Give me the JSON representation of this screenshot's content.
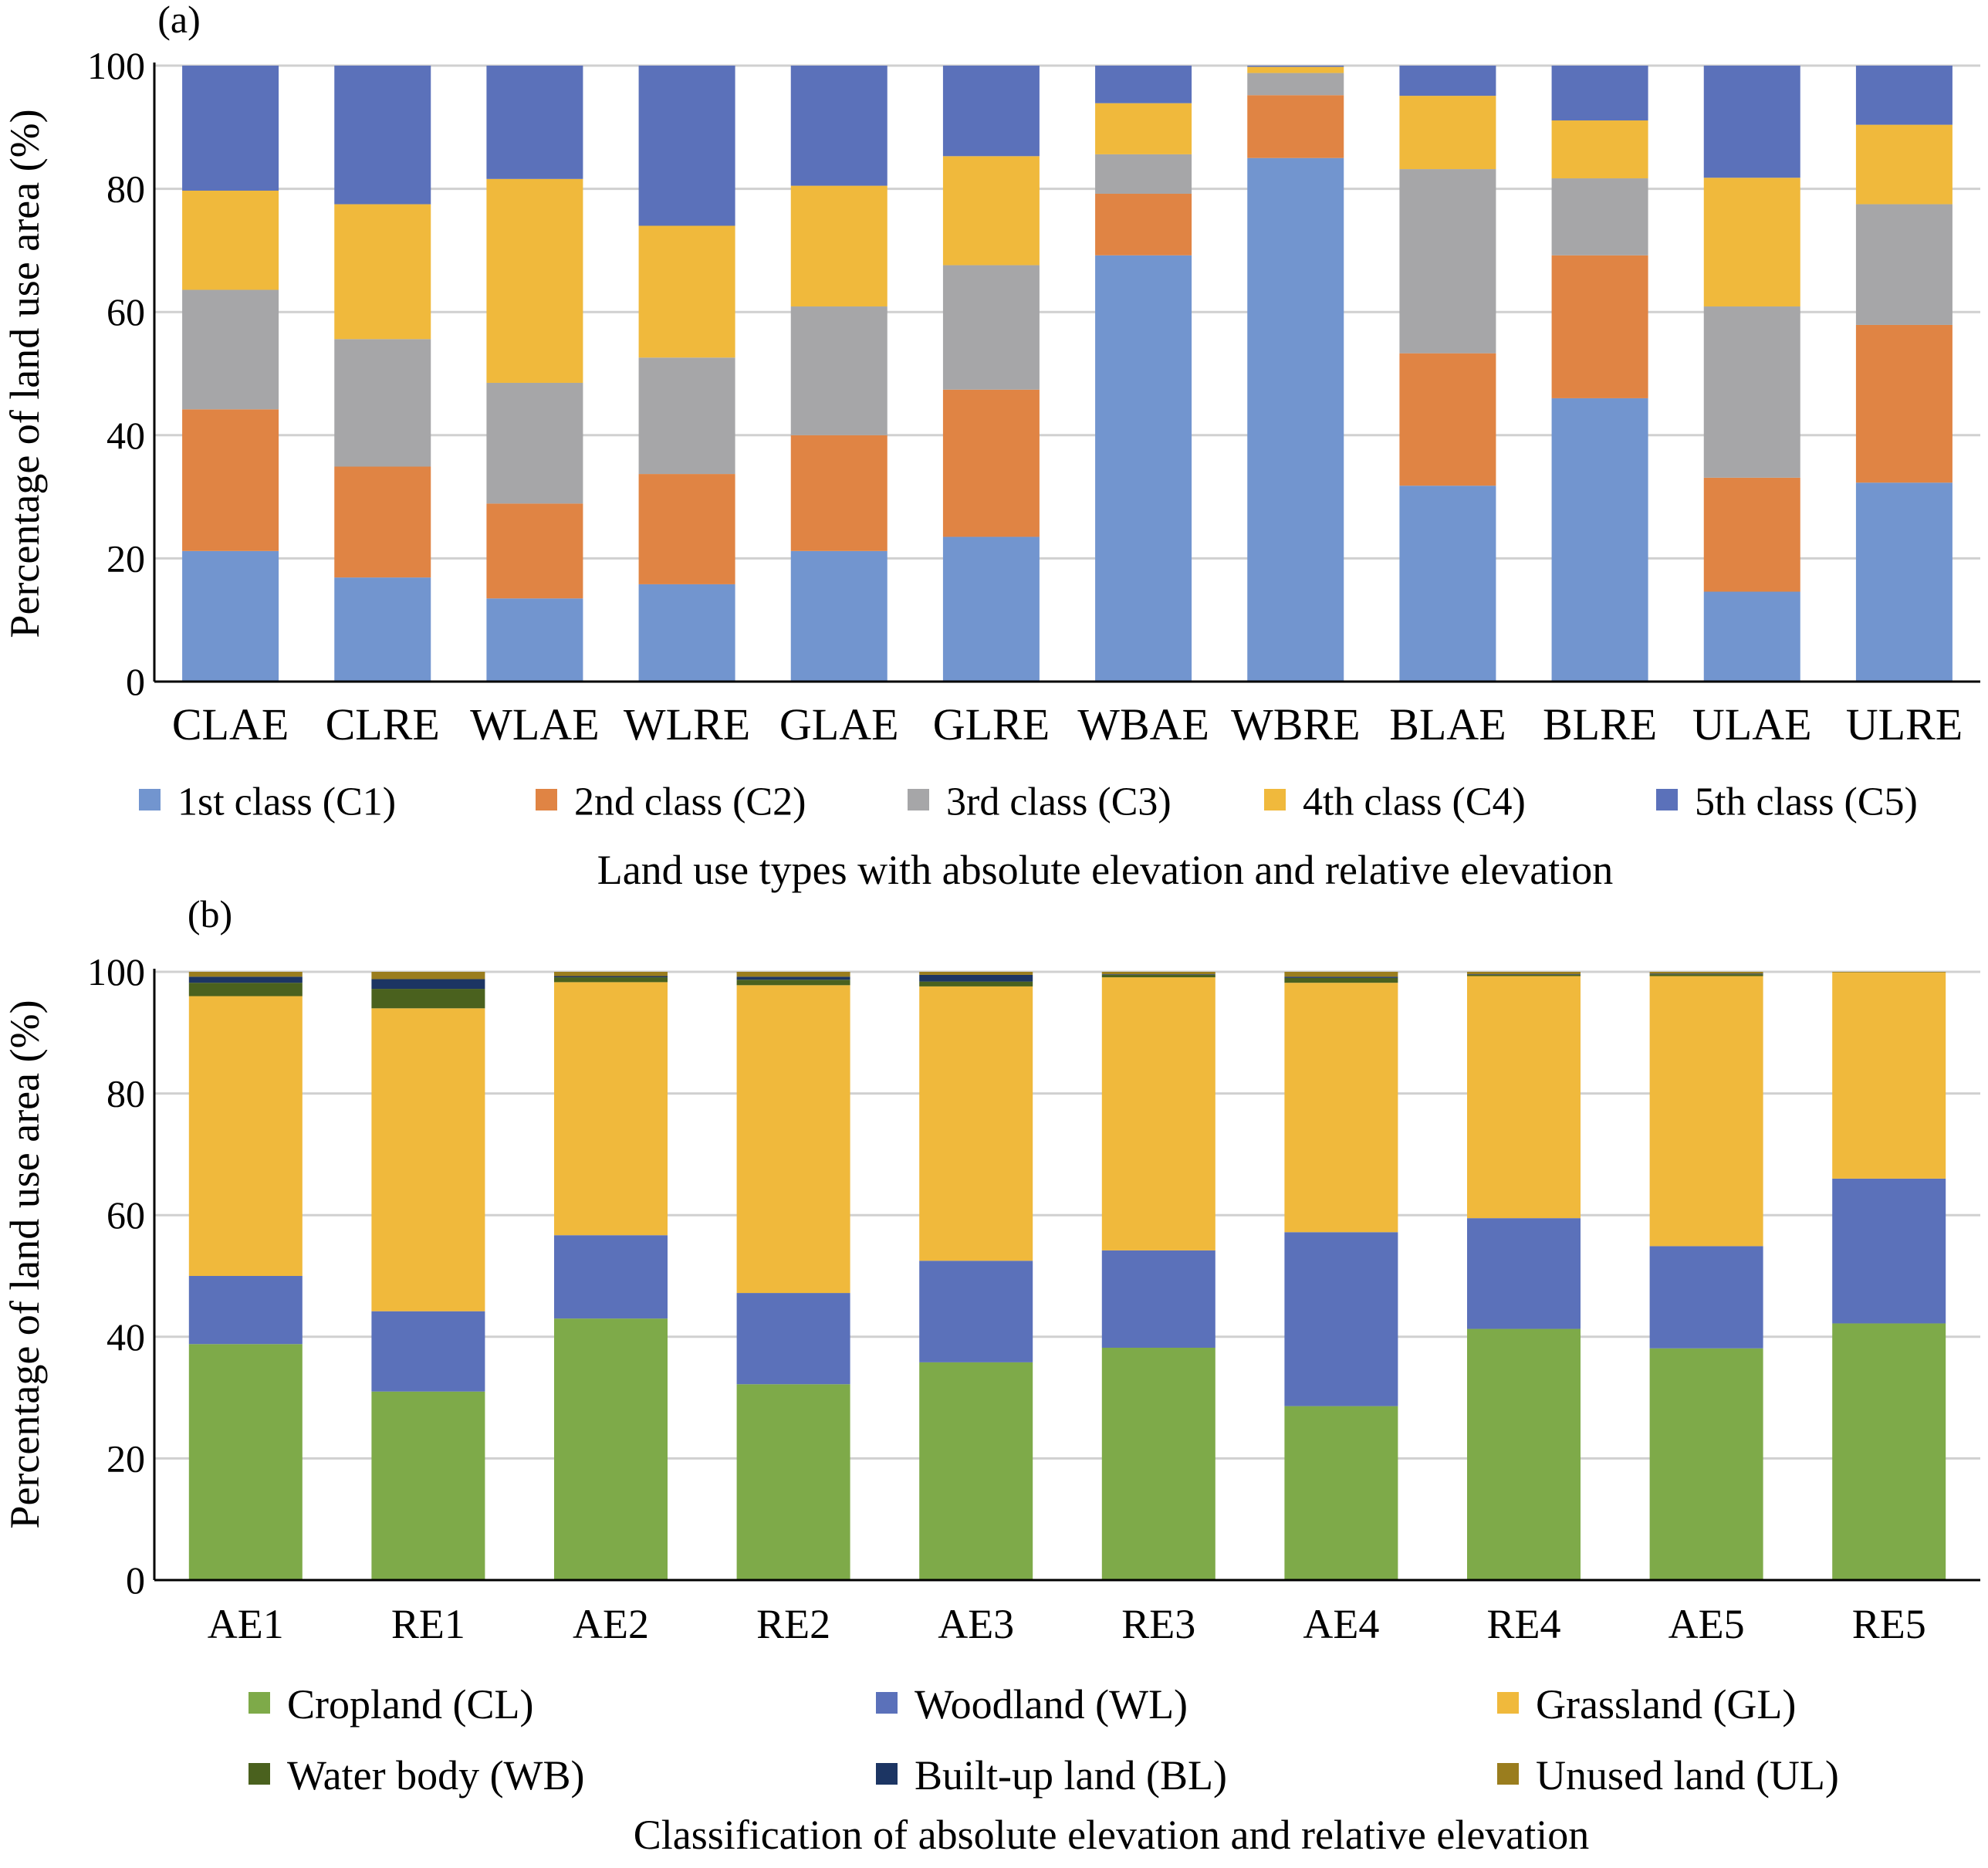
{
  "chart_data": [
    {
      "type": "bar",
      "stacked": true,
      "panel_label": "(a)",
      "xlabel": "Land use types with absolute elevation and relative elevation",
      "ylabel": "Percentage of land use area (%)",
      "ylim": [
        0,
        100
      ],
      "yticks": [
        "0",
        "20",
        "40",
        "60",
        "80",
        "100"
      ],
      "grid": "horizontal",
      "legend_position": "bottom",
      "categories": [
        "CLAE",
        "CLRE",
        "WLAE",
        "WLRE",
        "GLAE",
        "GLRE",
        "WBAE",
        "WBRE",
        "BLAE",
        "BLRE",
        "ULAE",
        "ULRE"
      ],
      "series": [
        {
          "name": "1st class (C1)",
          "color": "#7295cf",
          "values": [
            21.2,
            16.9,
            13.5,
            15.8,
            21.2,
            23.5,
            69.2,
            85.0,
            31.8,
            46.0,
            14.6,
            32.3
          ]
        },
        {
          "name": "2nd class (C2)",
          "color": "#e08444",
          "values": [
            23.0,
            18.0,
            15.4,
            17.9,
            18.8,
            23.9,
            10.0,
            10.2,
            21.5,
            23.2,
            18.5,
            25.6
          ]
        },
        {
          "name": "3rd class (C3)",
          "color": "#a6a6a8",
          "values": [
            19.4,
            20.7,
            19.6,
            18.9,
            20.9,
            20.2,
            6.4,
            3.6,
            29.9,
            12.5,
            27.8,
            19.6
          ]
        },
        {
          "name": "4th class (C4)",
          "color": "#f0b93c",
          "values": [
            16.1,
            21.9,
            33.1,
            21.4,
            19.6,
            17.7,
            8.3,
            1.0,
            11.9,
            9.4,
            20.9,
            12.9
          ]
        },
        {
          "name": "5th class (C5)",
          "color": "#5b71ba",
          "values": [
            20.3,
            22.5,
            18.4,
            26.0,
            19.5,
            14.7,
            6.1,
            0.2,
            4.9,
            8.9,
            18.2,
            9.6
          ]
        }
      ]
    },
    {
      "type": "bar",
      "stacked": true,
      "panel_label": "(b)",
      "xlabel": "Classification of absolute elevation and relative elevation",
      "ylabel": "Percentage of land use area (%)",
      "ylim": [
        0,
        100
      ],
      "yticks": [
        "0",
        "20",
        "40",
        "60",
        "80",
        "100"
      ],
      "grid": "horizontal",
      "legend_position": "bottom",
      "categories": [
        "AE1",
        "RE1",
        "AE2",
        "RE2",
        "AE3",
        "RE3",
        "AE4",
        "RE4",
        "AE5",
        "RE5"
      ],
      "series": [
        {
          "name": "Cropland (CL)",
          "color": "#7eaa49",
          "values": [
            38.8,
            31.0,
            43.0,
            32.2,
            35.8,
            38.2,
            28.6,
            41.3,
            38.1,
            42.2
          ]
        },
        {
          "name": "Woodland (WL)",
          "color": "#5b71ba",
          "values": [
            11.2,
            13.2,
            13.7,
            15.0,
            16.7,
            16.0,
            28.6,
            18.2,
            16.8,
            23.8
          ]
        },
        {
          "name": "Grassland (GL)",
          "color": "#f0b93c",
          "values": [
            46.0,
            49.8,
            41.6,
            50.6,
            45.1,
            44.9,
            41.0,
            39.8,
            44.4,
            33.9
          ]
        },
        {
          "name": "Water body (WB)",
          "color": "#4a611e",
          "values": [
            2.2,
            3.2,
            0.8,
            0.9,
            0.8,
            0.4,
            0.8,
            0.2,
            0.3,
            0.0
          ]
        },
        {
          "name": "Built-up land (BL)",
          "color": "#1c3563",
          "values": [
            1.0,
            1.6,
            0.2,
            0.5,
            1.1,
            0.1,
            0.2,
            0.1,
            0.1,
            0.0
          ]
        },
        {
          "name": "Unused land (UL)",
          "color": "#9a7d1e",
          "values": [
            0.8,
            1.2,
            0.7,
            0.8,
            0.5,
            0.4,
            0.8,
            0.4,
            0.3,
            0.1
          ]
        }
      ]
    }
  ]
}
